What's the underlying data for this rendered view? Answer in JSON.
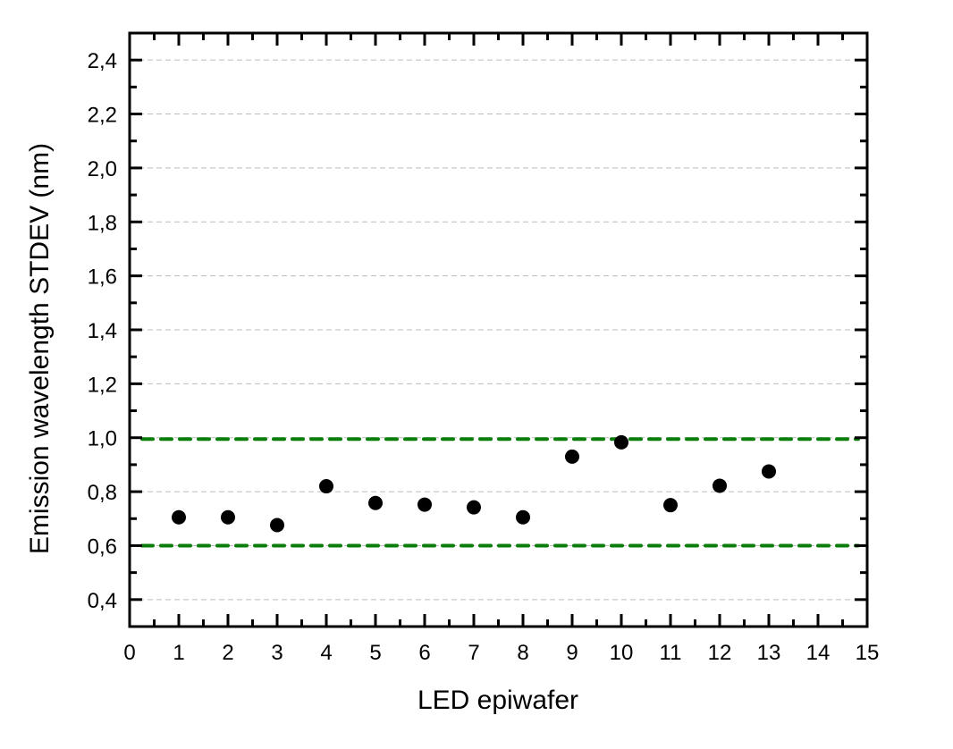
{
  "chart_data": {
    "type": "scatter",
    "title": "",
    "xlabel": "LED epiwafer",
    "ylabel": "Emission wavelength STDEV (nm)",
    "xlim": [
      0,
      15
    ],
    "ylim": [
      0.3,
      2.5
    ],
    "xticks": [
      0,
      1,
      2,
      3,
      4,
      5,
      6,
      7,
      8,
      9,
      10,
      11,
      12,
      13,
      14,
      15
    ],
    "xtick_labels": [
      "0",
      "1",
      "2",
      "3",
      "4",
      "5",
      "6",
      "7",
      "8",
      "9",
      "10",
      "11",
      "12",
      "13",
      "14",
      "15"
    ],
    "yticks": [
      0.4,
      0.6,
      0.8,
      1.0,
      1.2,
      1.4,
      1.6,
      1.8,
      2.0,
      2.2,
      2.4
    ],
    "ytick_labels": [
      "0,4",
      "0,6",
      "0,8",
      "1,0",
      "1,2",
      "1,4",
      "1,6",
      "1,8",
      "2,0",
      "2,2",
      "2,4"
    ],
    "grid": {
      "horizontal": true,
      "vertical": false,
      "style": "dashed",
      "color": "#bbbbbb"
    },
    "legend": null,
    "series": [
      {
        "name": "STDEV",
        "marker": "circle",
        "color": "#000000",
        "x": [
          1,
          2,
          3,
          4,
          5,
          6,
          7,
          8,
          9,
          10,
          11,
          12,
          13
        ],
        "y": [
          0.705,
          0.705,
          0.676,
          0.82,
          0.758,
          0.752,
          0.742,
          0.705,
          0.93,
          0.983,
          0.75,
          0.822,
          0.875
        ]
      }
    ],
    "reference_lines": [
      {
        "name": "upper-limit",
        "y": 0.995,
        "style": "dashed",
        "color": "#0a7d0a"
      },
      {
        "name": "lower-limit",
        "y": 0.6,
        "style": "dashed",
        "color": "#0a7d0a"
      }
    ]
  }
}
